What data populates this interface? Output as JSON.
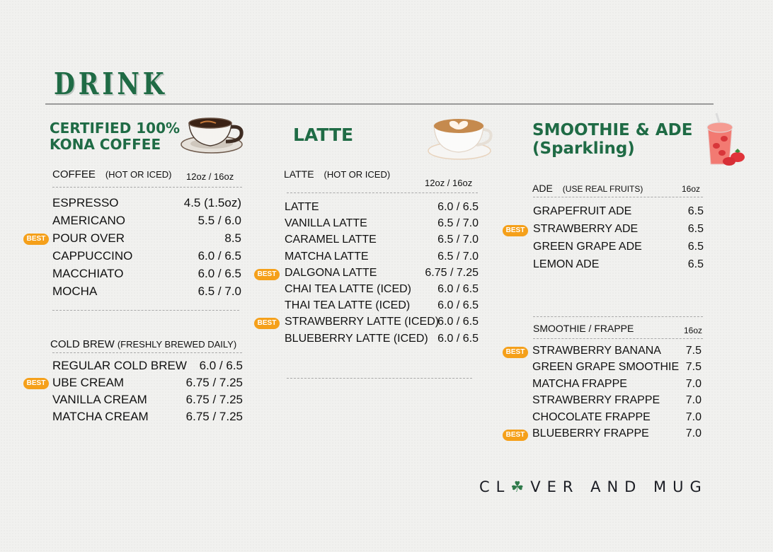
{
  "header": {
    "title": "DRINK"
  },
  "coffee_section": {
    "title_line1": "CERTIFIED 100%",
    "title_line2": "KONA COFFEE",
    "icon": "coffee-cup-icon",
    "coffee": {
      "label": "COFFEE",
      "note": "(HOT OR ICED)",
      "size": "12oz / 16oz",
      "items": [
        {
          "name": "ESPRESSO",
          "price": "4.5 (1.5oz)",
          "best": false
        },
        {
          "name": "AMERICANO",
          "price": "5.5 / 6.0",
          "best": false
        },
        {
          "name": "POUR OVER",
          "price": "8.5",
          "best": true
        },
        {
          "name": "CAPPUCCINO",
          "price": "6.0 / 6.5",
          "best": false
        },
        {
          "name": "MACCHIATO",
          "price": "6.0 / 6.5",
          "best": false
        },
        {
          "name": "MOCHA",
          "price": "6.5 / 7.0",
          "best": false
        }
      ]
    },
    "cold_brew": {
      "label": "COLD BREW",
      "note": "(FRESHLY BREWED DAILY)",
      "items": [
        {
          "name": "REGULAR COLD BREW",
          "price": "6.0 / 6.5",
          "best": false
        },
        {
          "name": "UBE CREAM",
          "price": "6.75 / 7.25",
          "best": true
        },
        {
          "name": "VANILLA CREAM",
          "price": "6.75 / 7.25",
          "best": false
        },
        {
          "name": "MATCHA CREAM",
          "price": "6.75 / 7.25",
          "best": false
        }
      ]
    }
  },
  "latte_section": {
    "title": "LATTE",
    "icon": "latte-art-cup-icon",
    "latte": {
      "label": "LATTE",
      "note": "(HOT OR ICED)",
      "size": "12oz / 16oz",
      "items": [
        {
          "name": "LATTE",
          "price": "6.0 / 6.5",
          "best": false
        },
        {
          "name": "VANILLA LATTE",
          "price": "6.5 / 7.0",
          "best": false
        },
        {
          "name": "CARAMEL LATTE",
          "price": "6.5 / 7.0",
          "best": false
        },
        {
          "name": "MATCHA LATTE",
          "price": "6.5 / 7.0",
          "best": false
        },
        {
          "name": "DALGONA LATTE",
          "price": "6.75 / 7.25",
          "best": true
        },
        {
          "name": "CHAI TEA LATTE (ICED)",
          "price": "6.0 / 6.5",
          "best": false
        },
        {
          "name": "THAI TEA LATTE (ICED)",
          "price": "6.0 / 6.5",
          "best": false
        },
        {
          "name": "STRAWBERRY LATTE (ICED)",
          "price": "6.0 / 6.5",
          "best": true
        },
        {
          "name": "BLUEBERRY LATTE (ICED)",
          "price": "6.0 / 6.5",
          "best": false
        }
      ]
    }
  },
  "smoothie_section": {
    "title_line1": "SMOOTHIE & ADE",
    "title_line2": "(Sparkling)",
    "icon": "strawberry-drink-icon",
    "ade": {
      "label": "ADE",
      "note": "(USE REAL FRUITS)",
      "size": "16oz",
      "items": [
        {
          "name": "GRAPEFRUIT ADE",
          "price": "6.5",
          "best": false
        },
        {
          "name": "STRAWBERRY ADE",
          "price": "6.5",
          "best": true
        },
        {
          "name": "GREEN GRAPE ADE",
          "price": "6.5",
          "best": false
        },
        {
          "name": "LEMON ADE",
          "price": "6.5",
          "best": false
        }
      ]
    },
    "smoothie": {
      "label": "SMOOTHIE / FRAPPE",
      "size": "16oz",
      "items": [
        {
          "name": "STRAWBERRY BANANA",
          "price": "7.5",
          "best": true
        },
        {
          "name": "GREEN GRAPE SMOOTHIE",
          "price": "7.5",
          "best": false
        },
        {
          "name": "MATCHA FRAPPE",
          "price": "7.0",
          "best": false
        },
        {
          "name": "STRAWBERRY FRAPPE",
          "price": "7.0",
          "best": false
        },
        {
          "name": "CHOCOLATE FRAPPE",
          "price": "7.0",
          "best": false
        },
        {
          "name": "BLUEBERRY FRAPPE",
          "price": "7.0",
          "best": true
        }
      ]
    }
  },
  "badge_label": "BEST",
  "brand": {
    "before": "CL",
    "clover": "☘",
    "after": "VER AND MUG"
  },
  "colors": {
    "green": "#1f6b45",
    "badge": "#f5a01a",
    "rule": "#9a9a9a"
  }
}
